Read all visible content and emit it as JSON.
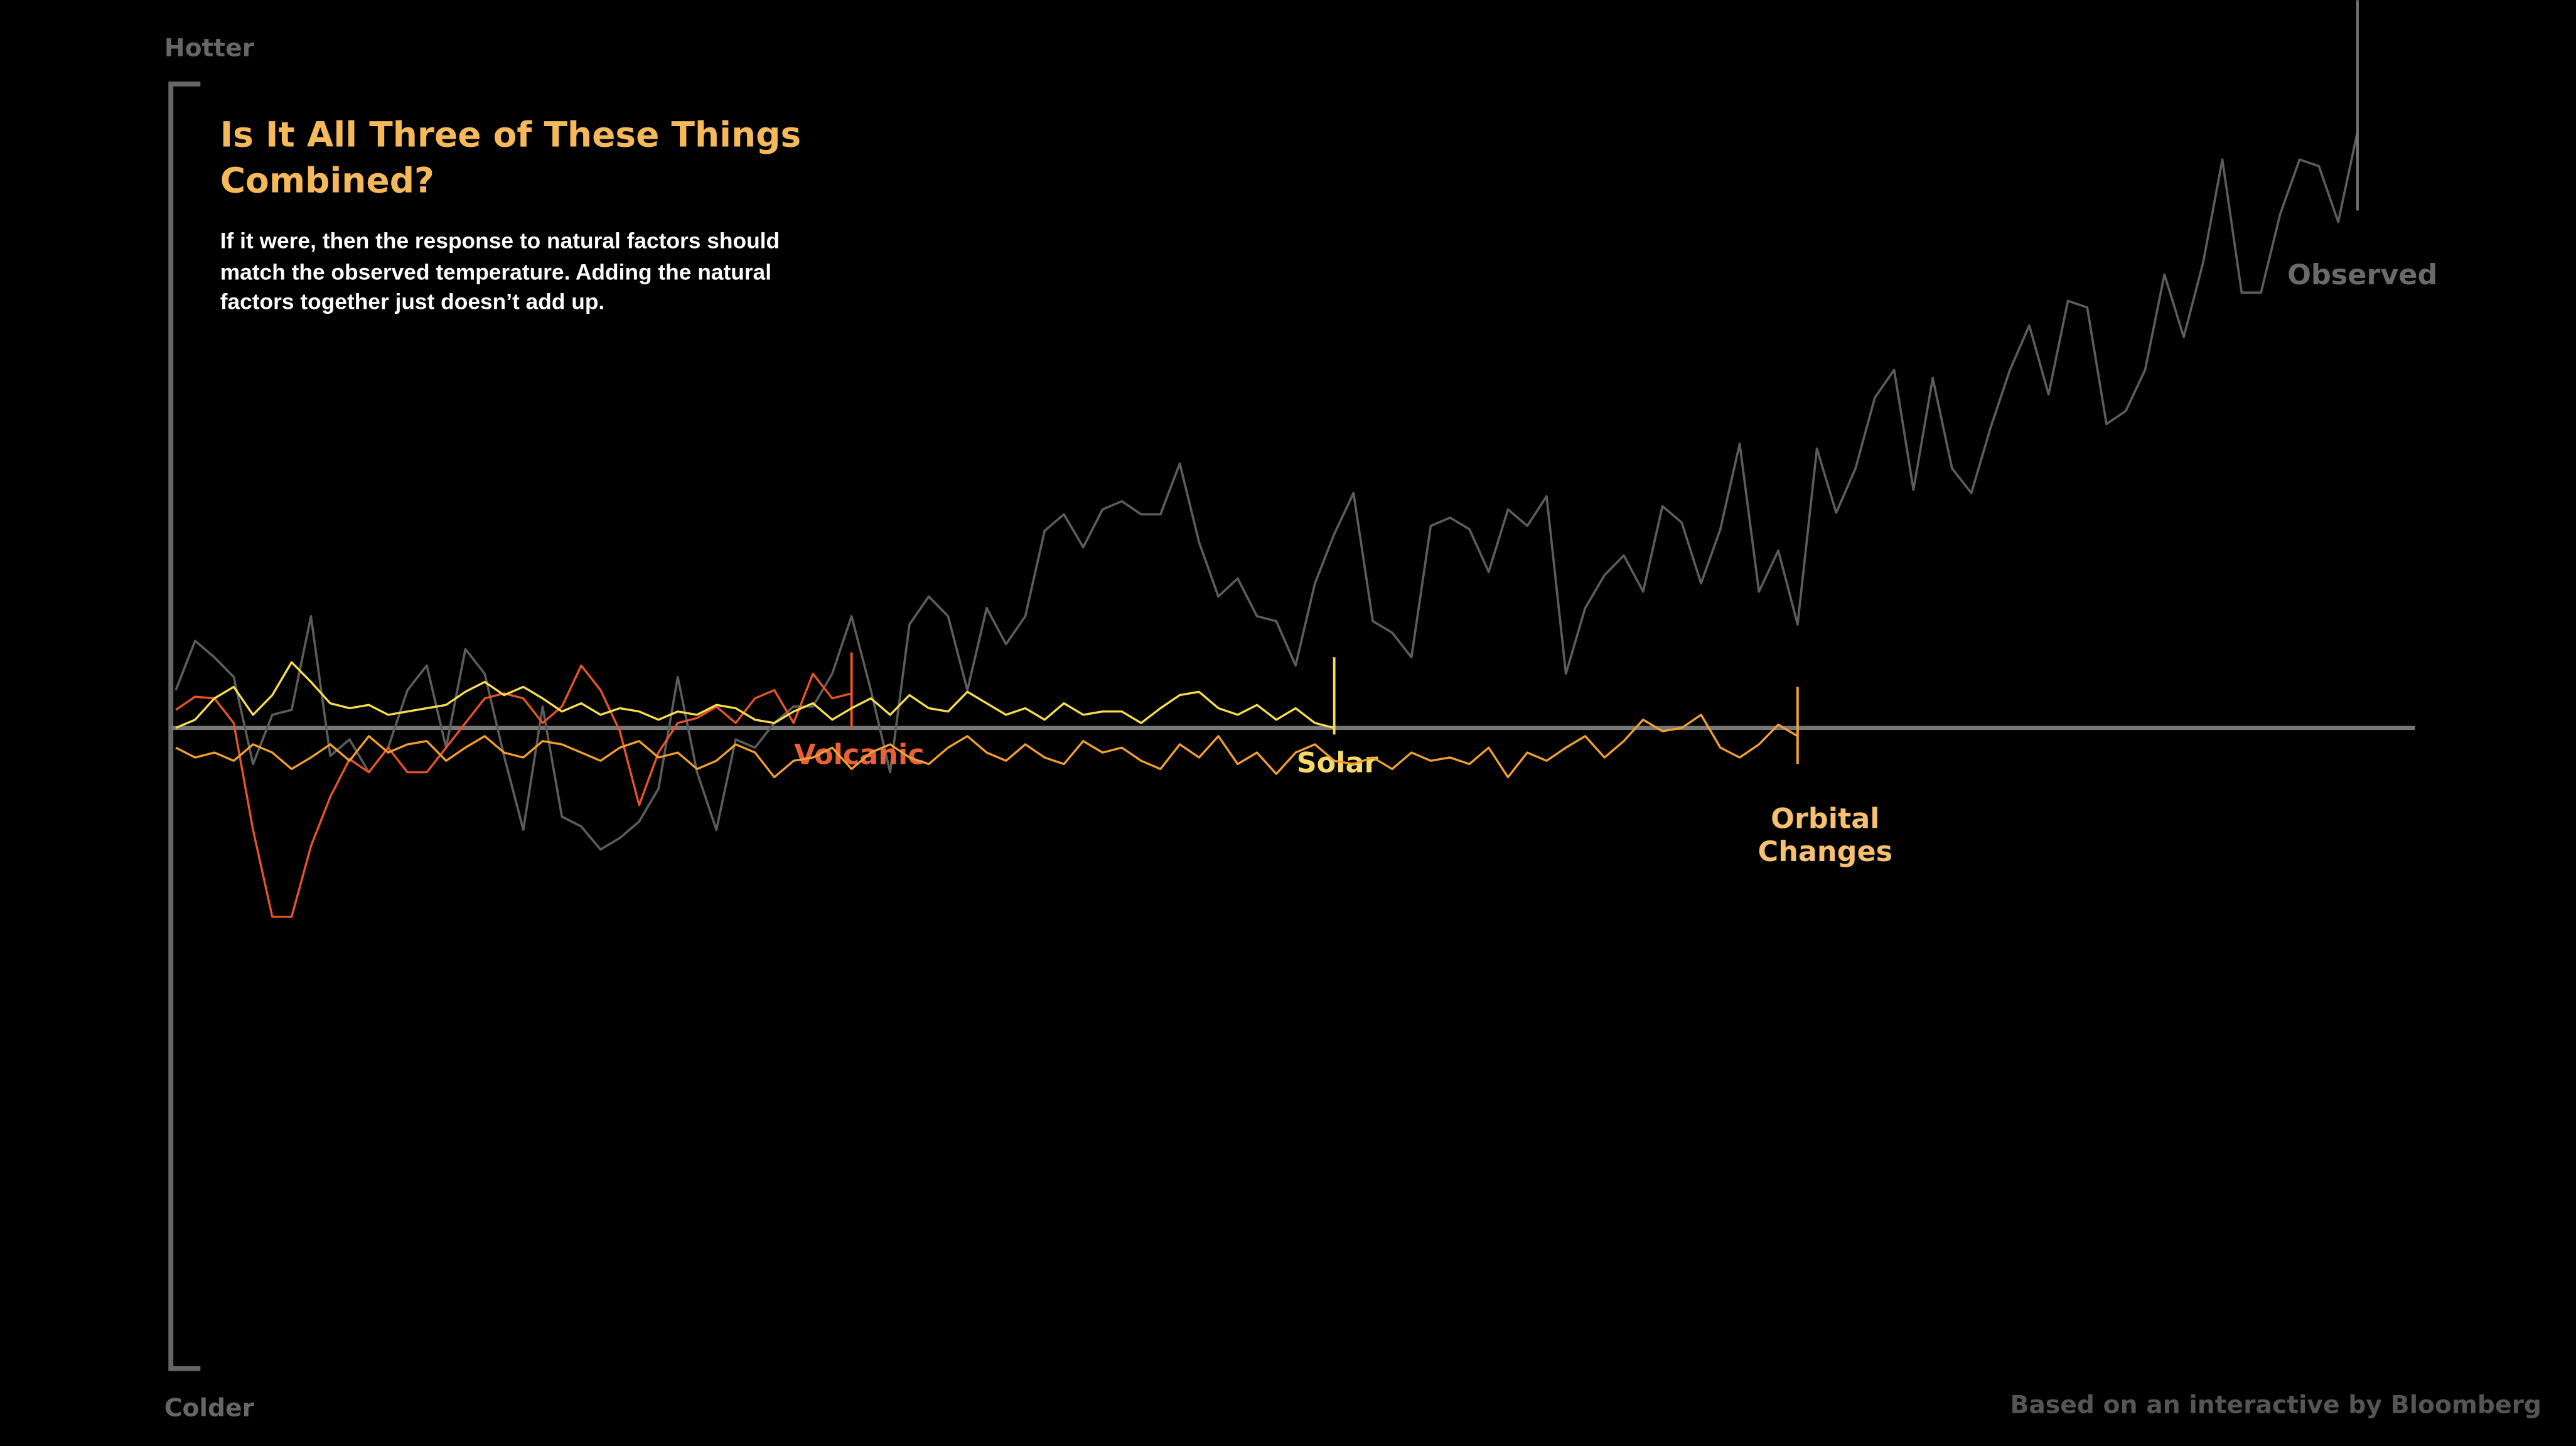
{
  "chart_data": {
    "type": "line",
    "title": "Is It All Three of These Things Combined?",
    "subtitle": "If it were, then the response to natural factors should match the observed temperature. Adding the natural factors together just doesn’t add up.",
    "y_top_label": "Hotter",
    "y_bottom_label": "Colder",
    "source": "Based on an interactive by Bloomberg",
    "ylim": [
      -390,
      390
    ],
    "categories": [
      null,
      null,
      null,
      null,
      null,
      null,
      null,
      null,
      null,
      null,
      null,
      null,
      null,
      null,
      null,
      null,
      null,
      null,
      null,
      null,
      null,
      null,
      null,
      null,
      null,
      null,
      null,
      null,
      null,
      null,
      null,
      null,
      null,
      null,
      null,
      null,
      null,
      null,
      null,
      null,
      null,
      null,
      null,
      null,
      null,
      null,
      null,
      null,
      null,
      null,
      null,
      null,
      null,
      null,
      null,
      null,
      null,
      null,
      null,
      null,
      null,
      null,
      null,
      null,
      null,
      null,
      null,
      null,
      null,
      null,
      null,
      null,
      null,
      null,
      null,
      null,
      null,
      null,
      null,
      null,
      null,
      null,
      null,
      null,
      null,
      null,
      null,
      null,
      null,
      null,
      null,
      null,
      null,
      null,
      null,
      null,
      null,
      null,
      null,
      null,
      null,
      null,
      null,
      null,
      null,
      null,
      null,
      null,
      null,
      null,
      null,
      null,
      null,
      null
    ],
    "series": [
      {
        "name": "Observed",
        "color": "#5c5c5c",
        "values": [
          23,
          53,
          43,
          31,
          -22,
          8,
          11,
          68,
          -17,
          -7,
          -27,
          -12,
          23,
          38,
          -12,
          48,
          33,
          -17,
          -62,
          13,
          -54,
          -60,
          -74,
          -67,
          -57,
          -37,
          31,
          -27,
          -62,
          -7,
          -12,
          3,
          13,
          13,
          33,
          68,
          23,
          -27,
          63,
          80,
          68,
          23,
          73,
          51,
          68,
          120,
          130,
          110,
          133,
          138,
          130,
          130,
          161,
          113,
          80,
          91,
          68,
          65,
          38,
          88,
          118,
          143,
          65,
          58,
          43,
          123,
          128,
          121,
          95,
          133,
          123,
          141,
          33,
          73,
          93,
          105,
          83,
          135,
          125,
          88,
          121,
          173,
          83,
          108,
          63,
          170,
          131,
          158,
          201,
          218,
          145,
          213,
          158,
          143,
          183,
          218,
          245,
          203,
          260,
          256,
          185,
          193,
          218,
          276,
          238,
          283,
          346,
          265,
          265,
          313,
          346,
          342,
          308,
          363
        ]
      },
      {
        "name": "Volcanic",
        "color": "#e8532a",
        "values": [
          11,
          19,
          18,
          3,
          -62,
          -115,
          -115,
          -72,
          -42,
          -19,
          -27,
          -12,
          -27,
          -27,
          -12,
          3,
          18,
          21,
          18,
          3,
          13,
          38,
          23,
          -2,
          -47,
          -15,
          3,
          6,
          13,
          3,
          18,
          23,
          3,
          33,
          18,
          21,
          null,
          null,
          null,
          null,
          null,
          null,
          null,
          null,
          null,
          null,
          null,
          null,
          null,
          null,
          null,
          null,
          null,
          null,
          null,
          null,
          null,
          null,
          null,
          null,
          null,
          null,
          null,
          null,
          null,
          null,
          null,
          null,
          null,
          null,
          null,
          null,
          null,
          null,
          null,
          null,
          null,
          null,
          null,
          null,
          null,
          null,
          null,
          null,
          null,
          null,
          null,
          null,
          null,
          null,
          null,
          null,
          null,
          null,
          null,
          null,
          null,
          null,
          null,
          null,
          null,
          null,
          null,
          null,
          null,
          null,
          null,
          null,
          null,
          null,
          null,
          null,
          null,
          null
        ]
      },
      {
        "name": "Solar",
        "color": "#f5dd4e",
        "values": [
          0,
          5,
          18,
          25,
          8,
          20,
          40,
          28,
          15,
          12,
          14,
          8,
          10,
          12,
          14,
          22,
          28,
          20,
          25,
          18,
          10,
          15,
          8,
          12,
          10,
          5,
          10,
          8,
          14,
          12,
          5,
          3,
          10,
          15,
          5,
          12,
          18,
          8,
          20,
          12,
          10,
          22,
          15,
          8,
          12,
          5,
          15,
          8,
          10,
          10,
          3,
          12,
          20,
          22,
          12,
          8,
          14,
          5,
          12,
          3,
          0,
          null,
          null,
          null,
          null,
          null,
          null,
          null,
          null,
          null,
          null,
          null,
          null,
          null,
          null,
          null,
          null,
          null,
          null,
          null,
          null,
          null,
          null,
          null,
          null,
          null,
          null,
          null,
          null,
          null,
          null,
          null,
          null,
          null,
          null,
          null,
          null,
          null,
          null,
          null,
          null,
          null,
          null,
          null,
          null,
          null,
          null,
          null,
          null,
          null,
          null,
          null,
          null,
          null
        ]
      },
      {
        "name": "Orbital Changes",
        "color": "#f0a030",
        "values": [
          -12,
          -18,
          -15,
          -20,
          -10,
          -15,
          -25,
          -18,
          -10,
          -20,
          -5,
          -15,
          -10,
          -8,
          -20,
          -12,
          -5,
          -15,
          -18,
          -8,
          -10,
          -15,
          -20,
          -12,
          -8,
          -18,
          -15,
          -25,
          -20,
          -10,
          -15,
          -30,
          -20,
          -18,
          -12,
          -25,
          -15,
          -10,
          -18,
          -22,
          -12,
          -5,
          -15,
          -20,
          -10,
          -18,
          -22,
          -8,
          -15,
          -12,
          -20,
          -25,
          -10,
          -18,
          -5,
          -22,
          -15,
          -28,
          -15,
          -10,
          -20,
          -22,
          -18,
          -25,
          -15,
          -20,
          -18,
          -22,
          -12,
          -30,
          -15,
          -20,
          -12,
          -5,
          -18,
          -8,
          5,
          -2,
          0,
          8,
          -12,
          -18,
          -10,
          2,
          -5,
          null,
          null,
          null,
          null,
          null,
          null,
          null,
          null,
          null,
          null,
          null,
          null,
          null,
          null,
          null,
          null,
          null,
          null,
          null,
          null,
          null,
          null,
          null,
          null,
          null,
          null,
          null,
          null,
          null
        ]
      }
    ]
  }
}
